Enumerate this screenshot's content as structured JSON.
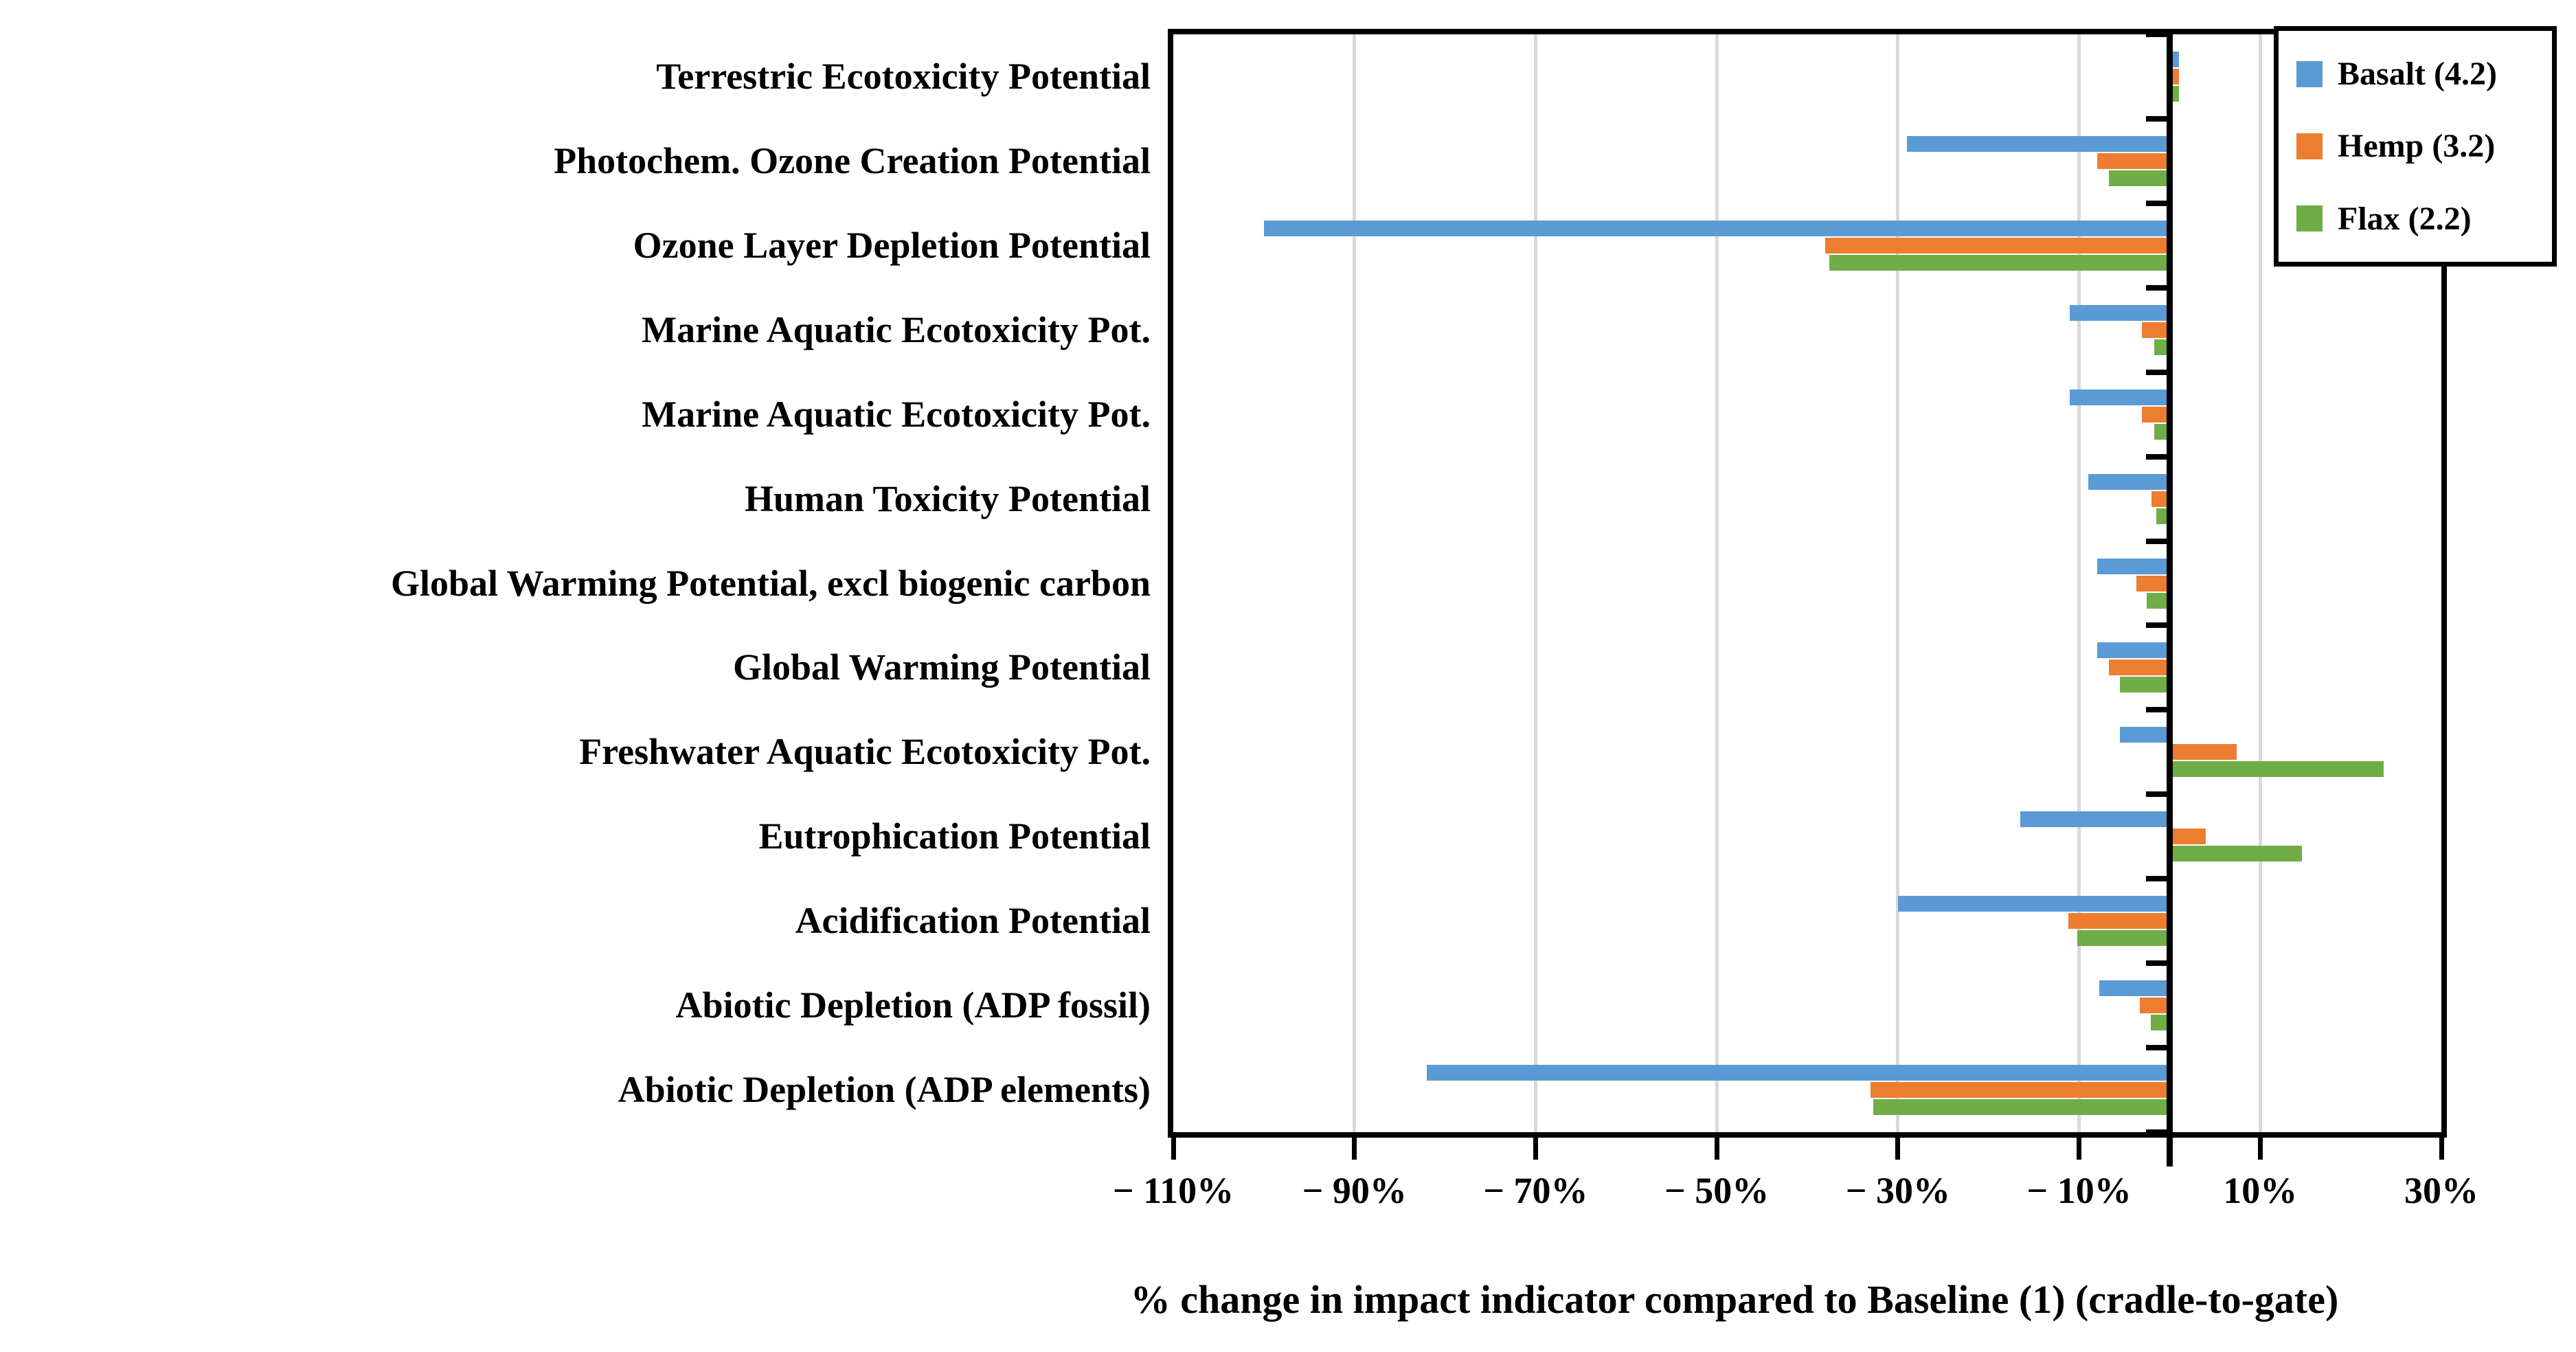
{
  "chart_data": {
    "type": "bar",
    "orientation": "horizontal",
    "xlabel": "% change in impact indicator compared to Baseline (1) (cradle-to-gate)",
    "xlim": [
      -110,
      30
    ],
    "xticks": [
      -110,
      -90,
      -70,
      -50,
      -30,
      -10,
      10,
      30
    ],
    "xtick_labels": [
      "− 110%",
      "− 90%",
      "− 70%",
      "− 50%",
      "− 30%",
      "− 10%",
      "10%",
      "30%"
    ],
    "gridline_values": [
      -90,
      -70,
      -50,
      -30,
      -10,
      10
    ],
    "grid": "vertical light-gray gridlines every 20%, plot framed in black, value axis drawn at 0%",
    "legend_position": "top-right",
    "categories": [
      "Terrestric Ecotoxicity Potential",
      "Photochem. Ozone Creation Potential",
      "Ozone Layer Depletion Potential",
      "Marine Aquatic Ecotoxicity Pot.",
      "Marine Aquatic Ecotoxicity Pot.",
      "Human Toxicity Potential",
      "Global Warming Potential, excl biogenic carbon",
      "Global Warming Potential",
      "Freshwater Aquatic Ecotoxicity Pot.",
      "Eutrophication Potential",
      "Acidification Potential",
      "Abiotic Depletion (ADP fossil)",
      "Abiotic Depletion (ADP elements)"
    ],
    "series": [
      {
        "name": "Basalt (4.2)",
        "color": "#5B9BD5",
        "values": [
          1,
          -29,
          -100,
          -11,
          -11,
          -9,
          -8,
          -8,
          -5.5,
          -16.5,
          -30,
          -7.8,
          -82
        ]
      },
      {
        "name": "Hemp (3.2)",
        "color": "#ED7D31",
        "values": [
          1,
          -8,
          -38,
          -3.1,
          -3.1,
          -2,
          -3.7,
          -6.7,
          7.4,
          4,
          -11.2,
          -3.3,
          -33
        ]
      },
      {
        "name": "Flax (2.2)",
        "color": "#70AD47",
        "values": [
          1,
          -6.7,
          -37.6,
          -1.7,
          -1.7,
          -1.5,
          -2.5,
          -5.5,
          23.6,
          14.6,
          -10.2,
          -2.1,
          -32.7
        ]
      }
    ]
  }
}
